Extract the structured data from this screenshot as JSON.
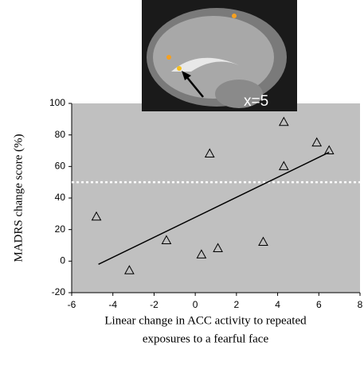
{
  "chart_data": {
    "type": "scatter",
    "x_label": [
      "Linear change in ACC activity  to repeated",
      "exposures to a fearful face"
    ],
    "y_label": "MADRS change score (%)",
    "inset_label": "x=5",
    "x": [
      -4.8,
      -3.2,
      -1.4,
      0.3,
      1.1,
      0.7,
      3.3,
      4.3,
      4.3,
      5.9,
      6.5
    ],
    "values": [
      28,
      -6,
      13,
      4,
      8,
      68,
      12,
      88,
      60,
      75,
      70
    ],
    "fit_line": {
      "x": [
        -4.7,
        6.5
      ],
      "y": [
        -2,
        69
      ]
    },
    "reference_line": 50,
    "xlim": [
      -6,
      8
    ],
    "xticks": [
      -6,
      -4,
      -2,
      0,
      2,
      4,
      6,
      8
    ],
    "ylim": [
      -20,
      100
    ],
    "yticks": [
      -20,
      0,
      20,
      40,
      60,
      80,
      100
    ],
    "background": "#c0c0c0",
    "marker_color": "#000000"
  }
}
